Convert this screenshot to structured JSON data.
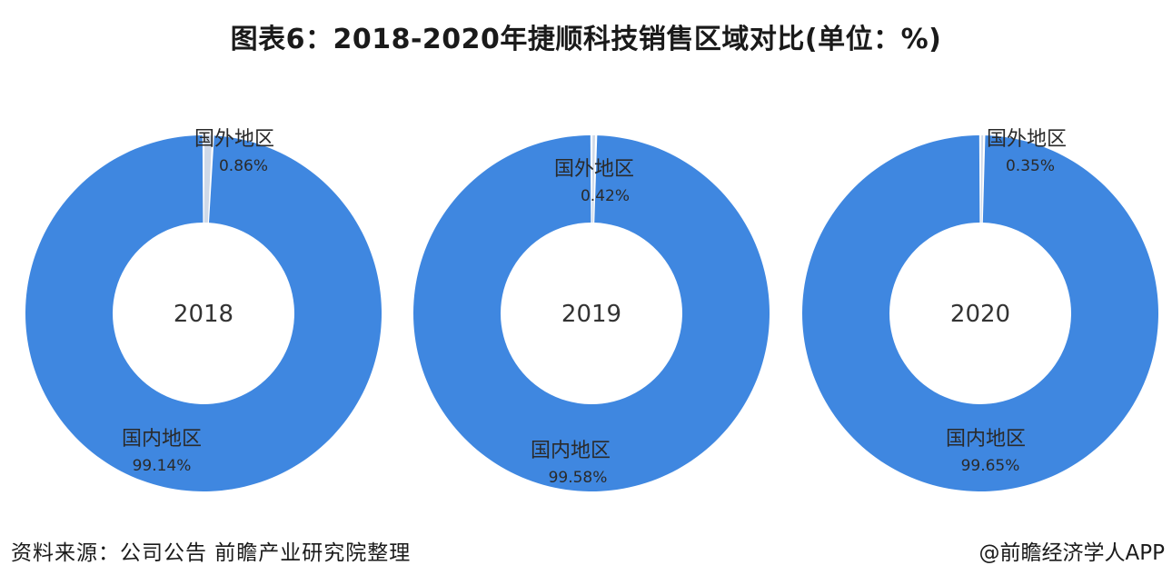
{
  "title": "图表6：2018-2020年捷顺科技销售区域对比(单位：%)",
  "source": "资料来源：公司公告 前瞻产业研究院整理",
  "credit": "@前瞻经济学人APP",
  "colors": {
    "domestic": "#3f87e0",
    "foreign": "#cfd9e8"
  },
  "chart_data": [
    {
      "type": "pie",
      "center_label": "2018",
      "slices": [
        {
          "label": "国外地区",
          "value": 0.86,
          "value_text": "0.86%"
        },
        {
          "label": "国内地区",
          "value": 99.14,
          "value_text": "99.14%"
        }
      ]
    },
    {
      "type": "pie",
      "center_label": "2019",
      "slices": [
        {
          "label": "国外地区",
          "value": 0.42,
          "value_text": "0.42%"
        },
        {
          "label": "国内地区",
          "value": 99.58,
          "value_text": "99.58%"
        }
      ]
    },
    {
      "type": "pie",
      "center_label": "2020",
      "slices": [
        {
          "label": "国外地区",
          "value": 0.35,
          "value_text": "0.35%"
        },
        {
          "label": "国内地区",
          "value": 99.65,
          "value_text": "99.65%"
        }
      ]
    }
  ]
}
